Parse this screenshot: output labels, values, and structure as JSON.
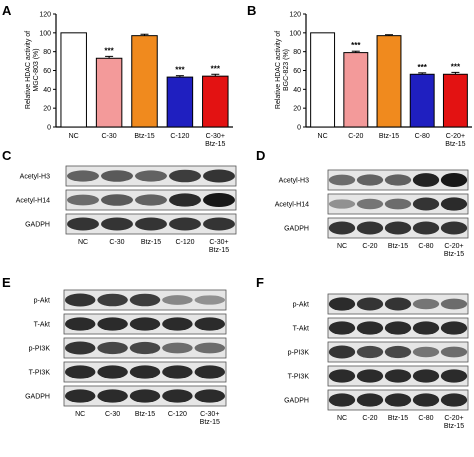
{
  "panels": {
    "A": "A",
    "B": "B",
    "C": "C",
    "D": "D",
    "E": "E",
    "F": "F"
  },
  "chart_data": [
    {
      "panel": "A",
      "type": "bar",
      "title": "",
      "xlabel": "",
      "ylabel": "Relative HDAC activity of MGC-803 (%)",
      "ylim": [
        0,
        120
      ],
      "yticks": [
        "0",
        "20",
        "40",
        "60",
        "80",
        "100",
        "120"
      ],
      "categories": [
        "NC",
        "C-30",
        "Btz-15",
        "C-120",
        "C-30+ Btz-15"
      ],
      "values": [
        100,
        73,
        97,
        53,
        54
      ],
      "errors": [
        0,
        2,
        1.5,
        1.5,
        2
      ],
      "significance": [
        "",
        "***",
        "",
        "***",
        "***"
      ],
      "colors": [
        "#ffffff",
        "#f39a9a",
        "#f08a1e",
        "#1f1fc0",
        "#e31212"
      ],
      "grid": false
    },
    {
      "panel": "B",
      "type": "bar",
      "title": "",
      "xlabel": "",
      "ylabel": "Relative HDAC activity of BGC-823 (%)",
      "ylim": [
        0,
        120
      ],
      "yticks": [
        "0",
        "20",
        "40",
        "60",
        "80",
        "100",
        "120"
      ],
      "categories": [
        "NC",
        "C-20",
        "Btz-15",
        "C-80",
        "C-20+ Btz-15"
      ],
      "values": [
        100,
        79,
        97,
        56,
        56
      ],
      "errors": [
        0,
        1.5,
        1,
        1.5,
        2
      ],
      "significance": [
        "",
        "***",
        "",
        "***",
        "***"
      ],
      "colors": [
        "#ffffff",
        "#f39a9a",
        "#f08a1e",
        "#1f1fc0",
        "#e31212"
      ],
      "grid": false
    }
  ],
  "blots": {
    "C": {
      "rows": [
        "Acetyl-H3",
        "Acetyl-H14",
        "GADPH"
      ],
      "lanes": [
        "NC",
        "C-30",
        "Btz-15",
        "C-120",
        "C-30+ Btz-15"
      ],
      "intensity": [
        [
          0.55,
          0.6,
          0.55,
          0.75,
          0.8
        ],
        [
          0.5,
          0.6,
          0.55,
          0.85,
          0.95
        ],
        [
          0.8,
          0.8,
          0.8,
          0.8,
          0.8
        ]
      ]
    },
    "D": {
      "rows": [
        "Acetyl-H3",
        "Acetyl-H14",
        "GADPH"
      ],
      "lanes": [
        "NC",
        "C-20",
        "Btz-15",
        "C-80",
        "C-20+ Btz-15"
      ],
      "intensity": [
        [
          0.5,
          0.55,
          0.55,
          0.9,
          0.95
        ],
        [
          0.3,
          0.45,
          0.5,
          0.8,
          0.85
        ],
        [
          0.8,
          0.8,
          0.8,
          0.8,
          0.8
        ]
      ]
    },
    "E": {
      "rows": [
        "p-Akt",
        "T-Akt",
        "p-PI3K",
        "T-PI3K",
        "GADPH"
      ],
      "lanes": [
        "NC",
        "C-30",
        "Btz-15",
        "C-120",
        "C-30+ Btz-15"
      ],
      "intensity": [
        [
          0.8,
          0.75,
          0.75,
          0.35,
          0.3
        ],
        [
          0.85,
          0.85,
          0.85,
          0.85,
          0.85
        ],
        [
          0.8,
          0.7,
          0.7,
          0.5,
          0.5
        ],
        [
          0.85,
          0.85,
          0.85,
          0.85,
          0.85
        ],
        [
          0.85,
          0.85,
          0.85,
          0.85,
          0.85
        ]
      ]
    },
    "F": {
      "rows": [
        "p-Akt",
        "T-Akt",
        "p-PI3K",
        "T-PI3K",
        "GADPH"
      ],
      "lanes": [
        "NC",
        "C-20",
        "Btz-15",
        "C-80",
        "C-20+ Btz-15"
      ],
      "intensity": [
        [
          0.85,
          0.8,
          0.8,
          0.45,
          0.5
        ],
        [
          0.85,
          0.85,
          0.85,
          0.85,
          0.85
        ],
        [
          0.8,
          0.7,
          0.7,
          0.45,
          0.5
        ],
        [
          0.85,
          0.85,
          0.85,
          0.85,
          0.85
        ],
        [
          0.85,
          0.85,
          0.85,
          0.85,
          0.85
        ]
      ]
    }
  }
}
